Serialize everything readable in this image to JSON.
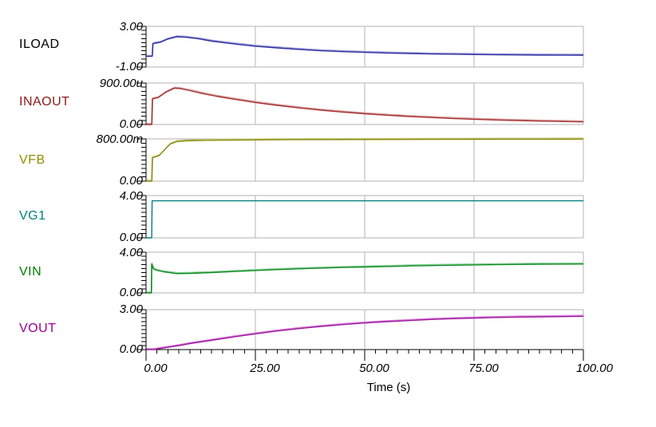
{
  "chart_data": {
    "type": "line",
    "title": "",
    "xlabel": "Time (s)",
    "x_range": [
      0,
      100
    ],
    "x_ticks": [
      0,
      25,
      50,
      75,
      100
    ],
    "x_tick_labels": [
      "0.00",
      "25.00",
      "50.00",
      "75.00",
      "100.00"
    ],
    "x_minor_divisions": 40,
    "y_minor_divisions": 10,
    "grid_color": "#b3b3b3",
    "axis_color": "#000000",
    "legend_position": "left",
    "plots": [
      {
        "label": "ILOAD",
        "label_color": "#000000",
        "trace_color": "#2a2a9e",
        "trace_light_color": "#9f9fd9",
        "y_min": -1,
        "y_max": 3,
        "y_min_label": "-1.00",
        "y_max_label": "3.00",
        "points": [
          [
            0,
            0.05
          ],
          [
            1.4,
            0.05
          ],
          [
            1.55,
            1.3
          ],
          [
            2.2,
            1.35
          ],
          [
            3.2,
            1.42
          ],
          [
            5,
            1.75
          ],
          [
            7,
            1.97
          ],
          [
            9,
            1.93
          ],
          [
            12,
            1.78
          ],
          [
            15,
            1.55
          ],
          [
            20,
            1.28
          ],
          [
            25,
            1.05
          ],
          [
            30,
            0.88
          ],
          [
            35,
            0.73
          ],
          [
            40,
            0.6
          ],
          [
            45,
            0.51
          ],
          [
            50,
            0.44
          ],
          [
            55,
            0.38
          ],
          [
            60,
            0.33
          ],
          [
            65,
            0.29
          ],
          [
            70,
            0.26
          ],
          [
            75,
            0.23
          ],
          [
            80,
            0.21
          ],
          [
            85,
            0.19
          ],
          [
            90,
            0.18
          ],
          [
            95,
            0.17
          ],
          [
            100,
            0.16
          ]
        ]
      },
      {
        "label": "INAOUT",
        "label_color": "#8c1a1a",
        "trace_color": "#a22c2c",
        "trace_light_color": "#d9a0a0",
        "y_min": 0,
        "y_max": 900,
        "y_min_label": "0.00",
        "y_max_label": "900.00u",
        "points": [
          [
            0,
            0
          ],
          [
            1.3,
            0
          ],
          [
            1.45,
            555
          ],
          [
            2.1,
            570
          ],
          [
            2.8,
            585
          ],
          [
            4.5,
            700
          ],
          [
            6.5,
            790
          ],
          [
            8,
            775
          ],
          [
            10,
            735
          ],
          [
            13,
            670
          ],
          [
            16,
            615
          ],
          [
            20,
            550
          ],
          [
            25,
            478
          ],
          [
            30,
            415
          ],
          [
            35,
            360
          ],
          [
            40,
            312
          ],
          [
            45,
            270
          ],
          [
            50,
            234
          ],
          [
            55,
            202
          ],
          [
            60,
            175
          ],
          [
            65,
            152
          ],
          [
            70,
            131
          ],
          [
            75,
            114
          ],
          [
            80,
            99
          ],
          [
            85,
            86
          ],
          [
            90,
            75
          ],
          [
            95,
            65
          ],
          [
            100,
            57
          ]
        ]
      },
      {
        "label": "VFB",
        "label_color": "#8f8f00",
        "trace_color": "#8a8a10",
        "trace_light_color": "#c9c97a",
        "y_min": 0,
        "y_max": 800,
        "y_min_label": "0.00",
        "y_max_label": "800.00m",
        "points": [
          [
            0,
            0
          ],
          [
            1.3,
            0
          ],
          [
            1.45,
            445
          ],
          [
            2.2,
            460
          ],
          [
            3,
            485
          ],
          [
            4,
            570
          ],
          [
            5.5,
            700
          ],
          [
            7,
            748
          ],
          [
            9,
            763
          ],
          [
            12,
            770
          ],
          [
            16,
            775
          ],
          [
            20,
            778
          ],
          [
            30,
            783
          ],
          [
            40,
            786
          ],
          [
            50,
            788
          ],
          [
            65,
            791
          ],
          [
            75,
            792
          ],
          [
            90,
            794
          ],
          [
            100,
            795
          ]
        ]
      },
      {
        "label": "VG1",
        "label_color": "#008080",
        "trace_color": "#067f7f",
        "trace_light_color": null,
        "y_min": 0,
        "y_max": 4,
        "y_min_label": "0.00",
        "y_max_label": "4.00",
        "points": [
          [
            0,
            0
          ],
          [
            1.3,
            0
          ],
          [
            1.38,
            3.5
          ],
          [
            100,
            3.5
          ]
        ]
      },
      {
        "label": "VIN",
        "label_color": "#008000",
        "trace_color": "#0a8a1e",
        "trace_light_color": "#8fcf9f",
        "y_min": 0,
        "y_max": 4,
        "y_min_label": "0.00",
        "y_max_label": "4.00",
        "points": [
          [
            0,
            0
          ],
          [
            1.2,
            0
          ],
          [
            1.28,
            2.85
          ],
          [
            1.7,
            2.35
          ],
          [
            2.5,
            2.22
          ],
          [
            4,
            2.08
          ],
          [
            7,
            1.9
          ],
          [
            10,
            1.92
          ],
          [
            15,
            2.0
          ],
          [
            20,
            2.1
          ],
          [
            25,
            2.2
          ],
          [
            30,
            2.29
          ],
          [
            35,
            2.37
          ],
          [
            40,
            2.44
          ],
          [
            45,
            2.5
          ],
          [
            50,
            2.55
          ],
          [
            55,
            2.6
          ],
          [
            60,
            2.65
          ],
          [
            65,
            2.69
          ],
          [
            70,
            2.72
          ],
          [
            75,
            2.75
          ],
          [
            80,
            2.78
          ],
          [
            85,
            2.8
          ],
          [
            90,
            2.82
          ],
          [
            95,
            2.83
          ],
          [
            100,
            2.84
          ]
        ]
      },
      {
        "label": "VOUT",
        "label_color": "#990099",
        "trace_color": "#9e179e",
        "trace_light_color": "#d67fd6",
        "y_min": 0,
        "y_max": 3,
        "y_min_label": "0.00",
        "y_max_label": "3.00",
        "points": [
          [
            0,
            0
          ],
          [
            1.8,
            0
          ],
          [
            3,
            0.07
          ],
          [
            5,
            0.17
          ],
          [
            8,
            0.33
          ],
          [
            10,
            0.45
          ],
          [
            13,
            0.6
          ],
          [
            16,
            0.75
          ],
          [
            20,
            0.95
          ],
          [
            25,
            1.18
          ],
          [
            30,
            1.4
          ],
          [
            35,
            1.58
          ],
          [
            40,
            1.74
          ],
          [
            45,
            1.88
          ],
          [
            50,
            2.0
          ],
          [
            55,
            2.1
          ],
          [
            60,
            2.18
          ],
          [
            65,
            2.26
          ],
          [
            70,
            2.32
          ],
          [
            75,
            2.37
          ],
          [
            80,
            2.41
          ],
          [
            85,
            2.44
          ],
          [
            90,
            2.46
          ],
          [
            95,
            2.48
          ],
          [
            100,
            2.5
          ]
        ]
      }
    ]
  }
}
